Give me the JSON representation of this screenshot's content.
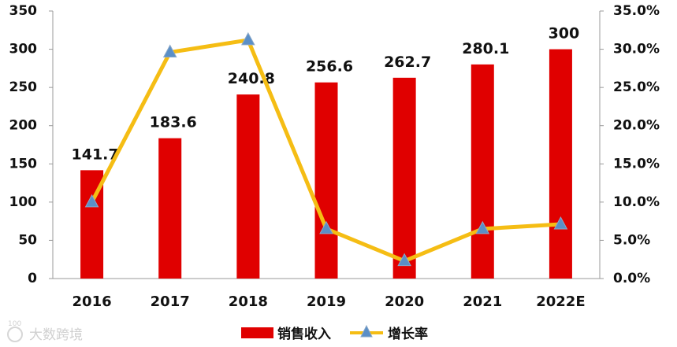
{
  "chart_data": {
    "type": "bar",
    "categories": [
      "2016",
      "2017",
      "2018",
      "2019",
      "2020",
      "2021",
      "2022E"
    ],
    "series": [
      {
        "name": "销售收入",
        "kind": "bar",
        "axis": "left",
        "color": "#e00000",
        "values": [
          141.7,
          183.6,
          240.8,
          256.6,
          262.7,
          280.1,
          300
        ],
        "data_labels": [
          "141.7",
          "183.6",
          "240.8",
          "256.6",
          "262.7",
          "280.1",
          "300"
        ]
      },
      {
        "name": "增长率",
        "kind": "line",
        "axis": "right",
        "color": "#f5bd14",
        "marker": "triangle",
        "marker_color": "#5b8fc7",
        "values": [
          10.0,
          29.6,
          31.2,
          6.5,
          2.3,
          6.5,
          7.1
        ]
      }
    ],
    "ylim": [
      0,
      350
    ],
    "y_ticks": [
      "0",
      "50",
      "100",
      "150",
      "200",
      "250",
      "300",
      "350"
    ],
    "y2lim": [
      0,
      35
    ],
    "y2_ticks": [
      "0.0%",
      "5.0%",
      "10.0%",
      "15.0%",
      "20.0%",
      "25.0%",
      "30.0%",
      "35.0%"
    ],
    "grid": false,
    "legend_position": "bottom-center"
  },
  "watermark": {
    "text": "大数跨境",
    "logo_text": "100"
  }
}
